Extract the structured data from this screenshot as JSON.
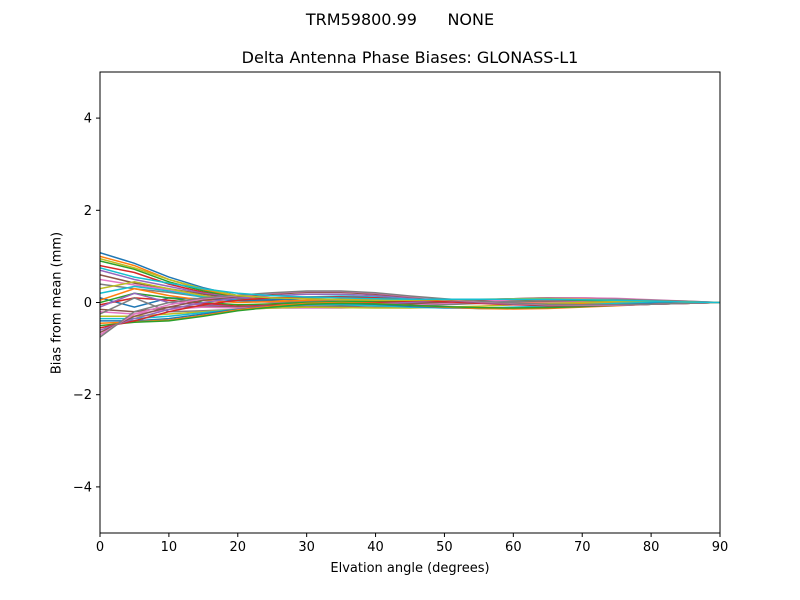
{
  "figure": {
    "suptitle": "TRM59800.99      NONE"
  },
  "chart_data": {
    "type": "line",
    "title": "Delta Antenna Phase Biases: GLONASS-L1",
    "xlabel": "Elvation angle (degrees)",
    "ylabel": "Bias from mean (mm)",
    "xlim": [
      0,
      90
    ],
    "ylim": [
      -5,
      5
    ],
    "xticks": [
      0,
      10,
      20,
      30,
      40,
      50,
      60,
      70,
      80,
      90
    ],
    "yticks": [
      -4,
      -2,
      0,
      2,
      4
    ],
    "ytick_labels": [
      "−4",
      "−2",
      "0",
      "2",
      "4"
    ],
    "grid": false,
    "x": [
      0,
      5,
      10,
      15,
      20,
      25,
      30,
      35,
      40,
      45,
      50,
      55,
      60,
      65,
      70,
      75,
      80,
      85,
      90
    ],
    "colors": [
      "#1f77b4",
      "#ff7f0e",
      "#2ca02c",
      "#d62728",
      "#9467bd",
      "#8c564b",
      "#e377c2",
      "#7f7f7f",
      "#bcbd22",
      "#17becf"
    ],
    "series": [
      {
        "values": [
          1.08,
          0.85,
          0.55,
          0.32,
          0.15,
          0.08,
          0.04,
          0.02,
          0.02,
          0.03,
          0.05,
          0.06,
          0.07,
          0.07,
          0.06,
          0.05,
          0.03,
          0.01,
          0.0
        ]
      },
      {
        "values": [
          1.0,
          0.8,
          0.5,
          0.28,
          0.12,
          0.05,
          0.01,
          -0.01,
          0.0,
          0.02,
          0.04,
          0.05,
          0.06,
          0.06,
          0.05,
          0.04,
          0.02,
          0.01,
          0.0
        ]
      },
      {
        "values": [
          0.9,
          0.72,
          0.45,
          0.25,
          0.1,
          0.03,
          0.0,
          -0.02,
          -0.02,
          0.0,
          0.02,
          0.04,
          0.05,
          0.05,
          0.05,
          0.04,
          0.02,
          0.01,
          0.0
        ]
      },
      {
        "values": [
          0.8,
          0.65,
          0.4,
          0.22,
          0.08,
          0.02,
          -0.02,
          -0.04,
          -0.03,
          -0.01,
          0.01,
          0.03,
          0.04,
          0.05,
          0.04,
          0.03,
          0.02,
          0.01,
          0.0
        ]
      },
      {
        "values": [
          0.7,
          0.5,
          0.35,
          0.2,
          0.1,
          0.04,
          0.0,
          -0.03,
          -0.04,
          -0.03,
          -0.01,
          0.02,
          0.04,
          0.05,
          0.04,
          0.03,
          0.02,
          0.01,
          0.0
        ]
      },
      {
        "values": [
          0.6,
          0.42,
          0.3,
          0.18,
          0.08,
          0.03,
          0.02,
          0.01,
          0.0,
          -0.01,
          -0.02,
          -0.01,
          0.0,
          0.02,
          0.03,
          0.03,
          0.02,
          0.01,
          0.0
        ]
      },
      {
        "values": [
          0.5,
          0.38,
          0.28,
          0.15,
          0.05,
          0.0,
          -0.03,
          -0.05,
          -0.05,
          -0.04,
          -0.03,
          -0.02,
          -0.01,
          0.0,
          0.01,
          0.01,
          0.01,
          0.0,
          0.0
        ]
      },
      {
        "values": [
          0.4,
          0.3,
          0.22,
          0.12,
          0.04,
          0.01,
          0.03,
          0.05,
          0.05,
          0.04,
          0.02,
          0.0,
          -0.02,
          -0.03,
          -0.03,
          -0.02,
          -0.01,
          0.0,
          0.0
        ]
      },
      {
        "values": [
          0.3,
          0.45,
          0.3,
          0.15,
          0.05,
          0.06,
          0.1,
          0.12,
          0.1,
          0.07,
          0.03,
          0.0,
          -0.03,
          -0.05,
          -0.05,
          -0.04,
          -0.02,
          -0.01,
          0.0
        ]
      },
      {
        "values": [
          0.2,
          0.35,
          0.25,
          0.12,
          0.06,
          0.08,
          0.12,
          0.14,
          0.12,
          0.08,
          0.04,
          0.01,
          -0.02,
          -0.04,
          -0.05,
          -0.04,
          -0.03,
          -0.01,
          0.0
        ]
      },
      {
        "values": [
          0.1,
          -0.1,
          0.1,
          0.08,
          0.04,
          0.06,
          0.1,
          0.12,
          0.1,
          0.06,
          0.03,
          0.0,
          -0.02,
          -0.03,
          -0.04,
          -0.03,
          -0.02,
          -0.01,
          0.0
        ]
      },
      {
        "values": [
          0.05,
          0.3,
          0.15,
          0.05,
          0.0,
          0.02,
          0.05,
          0.07,
          0.06,
          0.04,
          0.02,
          0.0,
          -0.01,
          -0.02,
          -0.02,
          -0.02,
          -0.01,
          0.0,
          0.0
        ]
      },
      {
        "values": [
          0.0,
          0.2,
          0.1,
          0.0,
          -0.05,
          -0.03,
          0.0,
          0.02,
          0.03,
          0.03,
          0.03,
          0.04,
          0.05,
          0.06,
          0.05,
          0.04,
          0.03,
          0.01,
          0.0
        ]
      },
      {
        "values": [
          -0.05,
          0.1,
          0.05,
          -0.02,
          -0.08,
          -0.06,
          -0.04,
          -0.02,
          0.0,
          0.02,
          0.04,
          0.06,
          0.08,
          0.09,
          0.08,
          0.06,
          0.04,
          0.02,
          0.0
        ]
      },
      {
        "values": [
          -0.1,
          0.2,
          0.0,
          -0.05,
          -0.1,
          -0.08,
          -0.06,
          -0.05,
          -0.03,
          0.0,
          0.03,
          0.06,
          0.08,
          0.09,
          0.08,
          0.06,
          0.04,
          0.02,
          0.0
        ]
      },
      {
        "values": [
          -0.15,
          -0.2,
          -0.1,
          -0.08,
          -0.1,
          -0.1,
          -0.09,
          -0.08,
          -0.06,
          -0.03,
          0.01,
          0.05,
          0.08,
          0.1,
          0.1,
          0.08,
          0.05,
          0.02,
          0.0
        ]
      },
      {
        "values": [
          -0.2,
          -0.25,
          -0.15,
          -0.1,
          -0.12,
          -0.12,
          -0.12,
          -0.12,
          -0.1,
          -0.07,
          -0.03,
          0.02,
          0.06,
          0.09,
          0.1,
          0.09,
          0.06,
          0.03,
          0.0
        ]
      },
      {
        "values": [
          -0.25,
          0.1,
          -0.2,
          -0.18,
          -0.15,
          -0.12,
          -0.1,
          -0.1,
          -0.1,
          -0.08,
          -0.05,
          -0.02,
          0.02,
          0.05,
          0.07,
          0.07,
          0.05,
          0.03,
          0.0
        ]
      },
      {
        "values": [
          -0.3,
          -0.3,
          -0.25,
          -0.2,
          -0.15,
          -0.12,
          -0.1,
          -0.11,
          -0.12,
          -0.12,
          -0.1,
          -0.08,
          -0.05,
          -0.02,
          0.0,
          0.02,
          0.02,
          0.01,
          0.0
        ]
      },
      {
        "values": [
          -0.35,
          -0.35,
          -0.3,
          -0.22,
          -0.15,
          -0.1,
          -0.05,
          -0.05,
          -0.07,
          -0.1,
          -0.12,
          -0.12,
          -0.1,
          -0.08,
          -0.05,
          -0.02,
          0.0,
          0.0,
          0.0
        ]
      },
      {
        "values": [
          -0.4,
          -0.4,
          -0.35,
          -0.25,
          -0.15,
          -0.08,
          -0.03,
          -0.02,
          -0.04,
          -0.08,
          -0.11,
          -0.13,
          -0.13,
          -0.11,
          -0.08,
          -0.05,
          -0.02,
          -0.01,
          0.0
        ]
      },
      {
        "values": [
          -0.45,
          -0.42,
          -0.38,
          -0.28,
          -0.16,
          -0.08,
          -0.02,
          0.0,
          -0.02,
          -0.06,
          -0.1,
          -0.13,
          -0.14,
          -0.13,
          -0.1,
          -0.07,
          -0.04,
          -0.02,
          0.0
        ]
      },
      {
        "values": [
          -0.5,
          -0.43,
          -0.4,
          -0.3,
          -0.18,
          -0.1,
          -0.04,
          -0.02,
          -0.03,
          -0.06,
          -0.09,
          -0.11,
          -0.12,
          -0.11,
          -0.09,
          -0.06,
          -0.04,
          -0.02,
          0.0
        ]
      },
      {
        "values": [
          -0.55,
          -0.4,
          -0.2,
          -0.05,
          0.05,
          0.1,
          0.12,
          0.12,
          0.1,
          0.06,
          0.02,
          -0.02,
          -0.05,
          -0.07,
          -0.07,
          -0.06,
          -0.04,
          -0.02,
          0.0
        ]
      },
      {
        "values": [
          -0.6,
          -0.35,
          -0.15,
          0.0,
          0.1,
          0.15,
          0.18,
          0.18,
          0.15,
          0.1,
          0.05,
          0.0,
          -0.04,
          -0.06,
          -0.07,
          -0.06,
          -0.04,
          -0.02,
          0.0
        ]
      },
      {
        "values": [
          -0.65,
          -0.3,
          -0.1,
          0.05,
          0.13,
          0.18,
          0.22,
          0.22,
          0.18,
          0.12,
          0.06,
          0.01,
          -0.03,
          -0.06,
          -0.07,
          -0.06,
          -0.04,
          -0.02,
          0.0
        ]
      },
      {
        "values": [
          -0.7,
          -0.25,
          -0.05,
          0.08,
          0.15,
          0.2,
          0.24,
          0.24,
          0.2,
          0.13,
          0.07,
          0.02,
          -0.02,
          -0.05,
          -0.06,
          -0.06,
          -0.04,
          -0.02,
          0.0
        ]
      },
      {
        "values": [
          -0.75,
          -0.2,
          0.0,
          0.1,
          0.16,
          0.21,
          0.25,
          0.25,
          0.21,
          0.14,
          0.08,
          0.03,
          -0.01,
          -0.04,
          -0.05,
          -0.05,
          -0.04,
          -0.02,
          0.0
        ]
      },
      {
        "values": [
          0.95,
          0.75,
          0.5,
          0.3,
          0.15,
          0.1,
          0.08,
          0.06,
          0.05,
          0.05,
          0.06,
          0.07,
          0.08,
          0.08,
          0.07,
          0.05,
          0.03,
          0.01,
          0.0
        ]
      },
      {
        "values": [
          0.75,
          0.55,
          0.42,
          0.3,
          0.2,
          0.15,
          0.12,
          0.1,
          0.08,
          0.07,
          0.07,
          0.07,
          0.07,
          0.07,
          0.06,
          0.05,
          0.03,
          0.01,
          0.0
        ]
      }
    ]
  }
}
